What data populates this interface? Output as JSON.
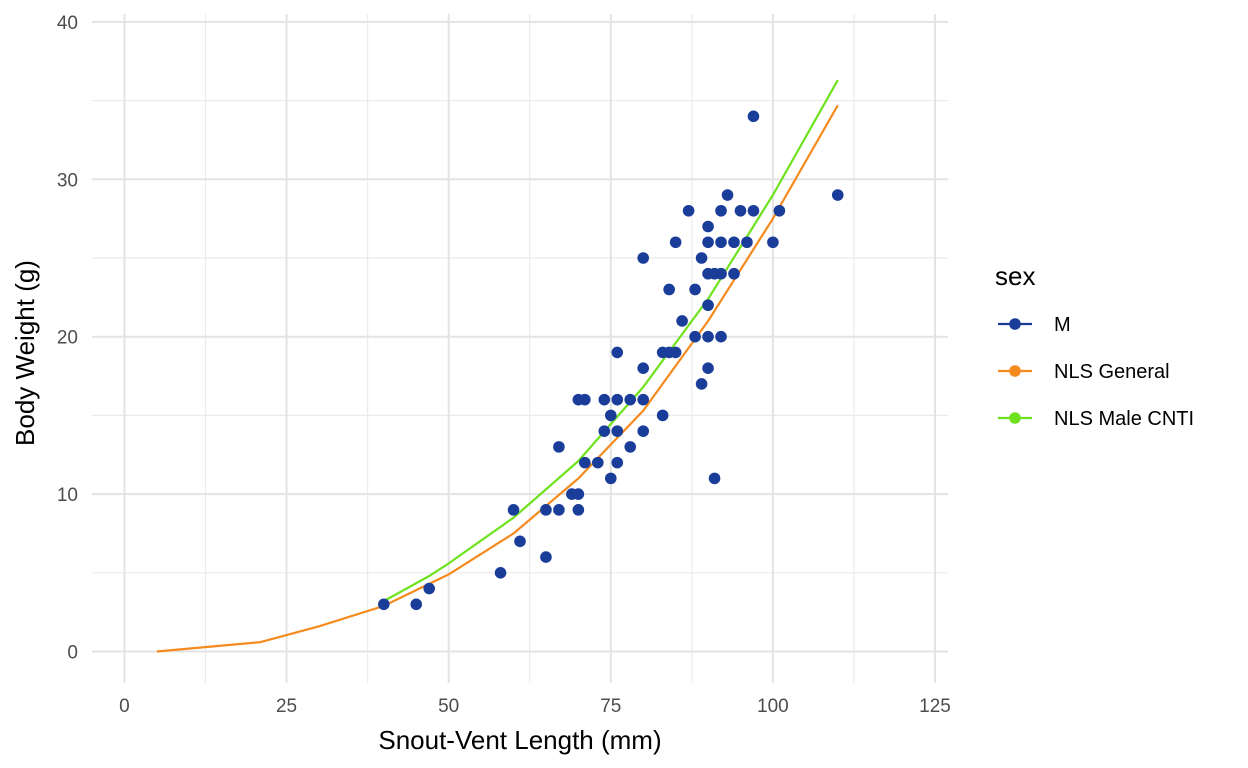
{
  "chart_data": {
    "type": "scatter",
    "xlabel": "Snout-Vent Length (mm)",
    "ylabel": "Body Weight (g)",
    "xlim": [
      -5,
      127
    ],
    "ylim": [
      -2,
      40.5
    ],
    "x_ticks": [
      0,
      25,
      50,
      75,
      100,
      125
    ],
    "x_tick_labels": [
      "0",
      "25",
      "50",
      "75",
      "100",
      "125"
    ],
    "y_ticks": [
      0,
      10,
      20,
      30,
      40
    ],
    "y_tick_labels": [
      "0",
      "10",
      "20",
      "30",
      "40"
    ],
    "grid": true,
    "legend": {
      "title": "sex",
      "position": "right",
      "entries": [
        {
          "label": "M",
          "color": "#1a3d9a",
          "kind": "point-line"
        },
        {
          "label": "NLS General",
          "color": "#f58a1f",
          "kind": "point-line"
        },
        {
          "label": "NLS Male CNTI",
          "color": "#6ee21c",
          "kind": "point-line"
        }
      ]
    },
    "series": [
      {
        "name": "M",
        "type": "scatter",
        "color": "#1a3d9a",
        "points": [
          [
            40,
            3
          ],
          [
            45,
            3
          ],
          [
            47,
            4
          ],
          [
            58,
            5
          ],
          [
            60,
            9
          ],
          [
            61,
            7
          ],
          [
            65,
            9
          ],
          [
            65,
            6
          ],
          [
            67,
            13
          ],
          [
            67,
            9
          ],
          [
            69,
            10
          ],
          [
            70,
            16
          ],
          [
            70,
            10
          ],
          [
            70,
            9
          ],
          [
            71,
            16
          ],
          [
            71,
            12
          ],
          [
            73,
            12
          ],
          [
            74,
            16
          ],
          [
            74,
            14
          ],
          [
            75,
            15
          ],
          [
            75,
            11
          ],
          [
            76,
            19
          ],
          [
            76,
            16
          ],
          [
            76,
            14
          ],
          [
            76,
            12
          ],
          [
            78,
            16
          ],
          [
            78,
            13
          ],
          [
            80,
            25
          ],
          [
            80,
            18
          ],
          [
            80,
            16
          ],
          [
            80,
            14
          ],
          [
            83,
            19
          ],
          [
            83,
            15
          ],
          [
            84,
            23
          ],
          [
            84,
            19
          ],
          [
            85,
            26
          ],
          [
            85,
            19
          ],
          [
            86,
            21
          ],
          [
            87,
            28
          ],
          [
            88,
            23
          ],
          [
            88,
            20
          ],
          [
            89,
            25
          ],
          [
            89,
            17
          ],
          [
            90,
            27
          ],
          [
            90,
            26
          ],
          [
            90,
            24
          ],
          [
            90,
            22
          ],
          [
            90,
            20
          ],
          [
            90,
            18
          ],
          [
            91,
            24
          ],
          [
            91,
            11
          ],
          [
            92,
            28
          ],
          [
            92,
            26
          ],
          [
            92,
            24
          ],
          [
            92,
            20
          ],
          [
            93,
            29
          ],
          [
            94,
            26
          ],
          [
            94,
            24
          ],
          [
            95,
            28
          ],
          [
            96,
            26
          ],
          [
            97,
            34
          ],
          [
            97,
            28
          ],
          [
            100,
            26
          ],
          [
            101,
            28
          ],
          [
            110,
            29
          ]
        ]
      },
      {
        "name": "NLS General",
        "type": "line",
        "color": "#f58a1f",
        "points": [
          [
            5,
            0
          ],
          [
            21,
            0.6
          ],
          [
            30,
            1.6
          ],
          [
            40,
            2.9
          ],
          [
            50,
            4.9
          ],
          [
            60,
            7.5
          ],
          [
            70,
            11.0
          ],
          [
            80,
            15.3
          ],
          [
            90,
            21.0
          ],
          [
            100,
            27.5
          ],
          [
            110,
            34.7
          ]
        ]
      },
      {
        "name": "NLS Male CNTI",
        "type": "line",
        "color": "#6ee21c",
        "points": [
          [
            40,
            3.2
          ],
          [
            47,
            4.8
          ],
          [
            50,
            5.6
          ],
          [
            60,
            8.5
          ],
          [
            70,
            12.1
          ],
          [
            80,
            16.8
          ],
          [
            90,
            22.4
          ],
          [
            100,
            29.0
          ],
          [
            110,
            36.3
          ]
        ]
      }
    ]
  }
}
